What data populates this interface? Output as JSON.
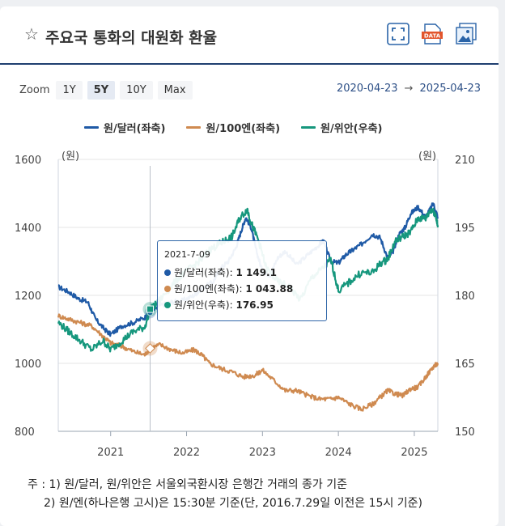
{
  "header": {
    "title": "주요국 통화의 대원화 환율",
    "star_icon": "star-outline-icon",
    "tools": [
      "fullscreen-icon",
      "data-download-icon",
      "image-download-icon"
    ],
    "data_badge": "DATA"
  },
  "zoom": {
    "label": "Zoom",
    "buttons": [
      "1Y",
      "5Y",
      "10Y",
      "Max"
    ],
    "active": "5Y"
  },
  "range": {
    "from": "2020-04-23",
    "arrow": "→",
    "to": "2025-04-23"
  },
  "tooltip": {
    "date": "2021-7-09",
    "rows": [
      {
        "label": "원/달러(좌축):",
        "value": "1 149.1"
      },
      {
        "label": "원/100엔(좌축):",
        "value": "1 043.88"
      },
      {
        "label": "원/위안(우축):",
        "value": "176.95"
      }
    ]
  },
  "notes": {
    "line1": "주 : 1)  원/달러, 원/위안은 서울외국환시장 은행간 거래의 종가 기준",
    "line2": "2)  원/엔(하나은행 고시)은 15:30분 기준(단, 2016.7.29일 이전은 15시 기준)"
  },
  "chart_data": {
    "type": "line",
    "left_axis": {
      "unit_label": "(원)",
      "range": [
        800,
        1600
      ],
      "ticks": [
        800,
        1000,
        1200,
        1400,
        1600
      ]
    },
    "right_axis": {
      "unit_label": "(원)",
      "range": [
        150,
        210
      ],
      "ticks": [
        150,
        165,
        180,
        195,
        210
      ]
    },
    "x_range": [
      2020.31,
      2025.31
    ],
    "x_ticks": [
      2021,
      2022,
      2023,
      2024,
      2025
    ],
    "x_tick_labels": [
      "2021",
      "2022",
      "2023",
      "2024",
      "2025"
    ],
    "crosshair_x": 2021.52,
    "series": [
      {
        "name": "원/달러(좌축)",
        "axis": "left",
        "color": "#1f5aa6",
        "x": [
          2020.31,
          2020.45,
          2020.58,
          2020.7,
          2020.8,
          2020.92,
          2021.0,
          2021.15,
          2021.3,
          2021.45,
          2021.52,
          2021.65,
          2021.8,
          2021.95,
          2022.1,
          2022.2,
          2022.35,
          2022.45,
          2022.55,
          2022.65,
          2022.72,
          2022.78,
          2022.85,
          2022.92,
          2023.0,
          2023.1,
          2023.2,
          2023.3,
          2023.45,
          2023.6,
          2023.75,
          2023.8,
          2023.9,
          2024.0,
          2024.1,
          2024.2,
          2024.3,
          2024.45,
          2024.55,
          2024.65,
          2024.72,
          2024.8,
          2024.88,
          2024.95,
          2025.05,
          2025.15,
          2025.25,
          2025.31
        ],
        "y": [
          1225,
          1210,
          1190,
          1180,
          1130,
          1100,
          1085,
          1110,
          1120,
          1135,
          1149,
          1170,
          1180,
          1185,
          1200,
          1220,
          1240,
          1280,
          1300,
          1340,
          1390,
          1430,
          1400,
          1330,
          1270,
          1260,
          1310,
          1330,
          1290,
          1320,
          1350,
          1360,
          1300,
          1295,
          1320,
          1335,
          1350,
          1380,
          1370,
          1310,
          1330,
          1380,
          1400,
          1440,
          1460,
          1430,
          1470,
          1430
        ]
      },
      {
        "name": "원/100엔(좌축)",
        "axis": "left",
        "color": "#cf8a50",
        "x": [
          2020.31,
          2020.45,
          2020.6,
          2020.75,
          2020.9,
          2021.0,
          2021.15,
          2021.3,
          2021.45,
          2021.52,
          2021.65,
          2021.8,
          2021.95,
          2022.1,
          2022.2,
          2022.3,
          2022.45,
          2022.6,
          2022.75,
          2022.9,
          2023.0,
          2023.15,
          2023.3,
          2023.45,
          2023.6,
          2023.75,
          2023.9,
          2024.0,
          2024.15,
          2024.3,
          2024.45,
          2024.55,
          2024.65,
          2024.75,
          2024.85,
          2024.95,
          2025.05,
          2025.15,
          2025.25,
          2025.31
        ],
        "y": [
          1140,
          1130,
          1120,
          1110,
          1080,
          1060,
          1050,
          1035,
          1025,
          1044,
          1055,
          1040,
          1030,
          1040,
          1025,
          1000,
          985,
          975,
          960,
          965,
          980,
          950,
          920,
          920,
          905,
          895,
          895,
          900,
          880,
          865,
          880,
          900,
          920,
          910,
          905,
          925,
          930,
          960,
          990,
          1000
        ]
      },
      {
        "name": "원/위안(우축)",
        "axis": "right",
        "color": "#16977d",
        "x": [
          2020.31,
          2020.45,
          2020.6,
          2020.75,
          2020.9,
          2021.0,
          2021.15,
          2021.3,
          2021.45,
          2021.52,
          2021.6,
          2021.75,
          2021.9,
          2022.05,
          2022.2,
          2022.3,
          2022.4,
          2022.5,
          2022.6,
          2022.7,
          2022.8,
          2022.85,
          2022.95,
          2023.05,
          2023.2,
          2023.35,
          2023.5,
          2023.65,
          2023.8,
          2023.9,
          2024.0,
          2024.15,
          2024.3,
          2024.45,
          2024.55,
          2024.65,
          2024.75,
          2024.85,
          2024.95,
          2025.05,
          2025.15,
          2025.22,
          2025.28,
          2025.31
        ],
        "y": [
          174,
          172,
          170,
          168,
          170,
          168,
          170,
          172,
          173,
          176.95,
          178,
          181,
          184,
          186,
          188,
          190,
          191,
          192,
          193,
          197,
          199,
          196,
          192,
          186,
          183,
          182,
          179,
          184,
          186,
          188,
          181,
          183,
          185,
          185,
          187,
          188,
          192,
          193,
          194,
          197,
          197,
          199,
          198,
          195
        ]
      }
    ]
  }
}
